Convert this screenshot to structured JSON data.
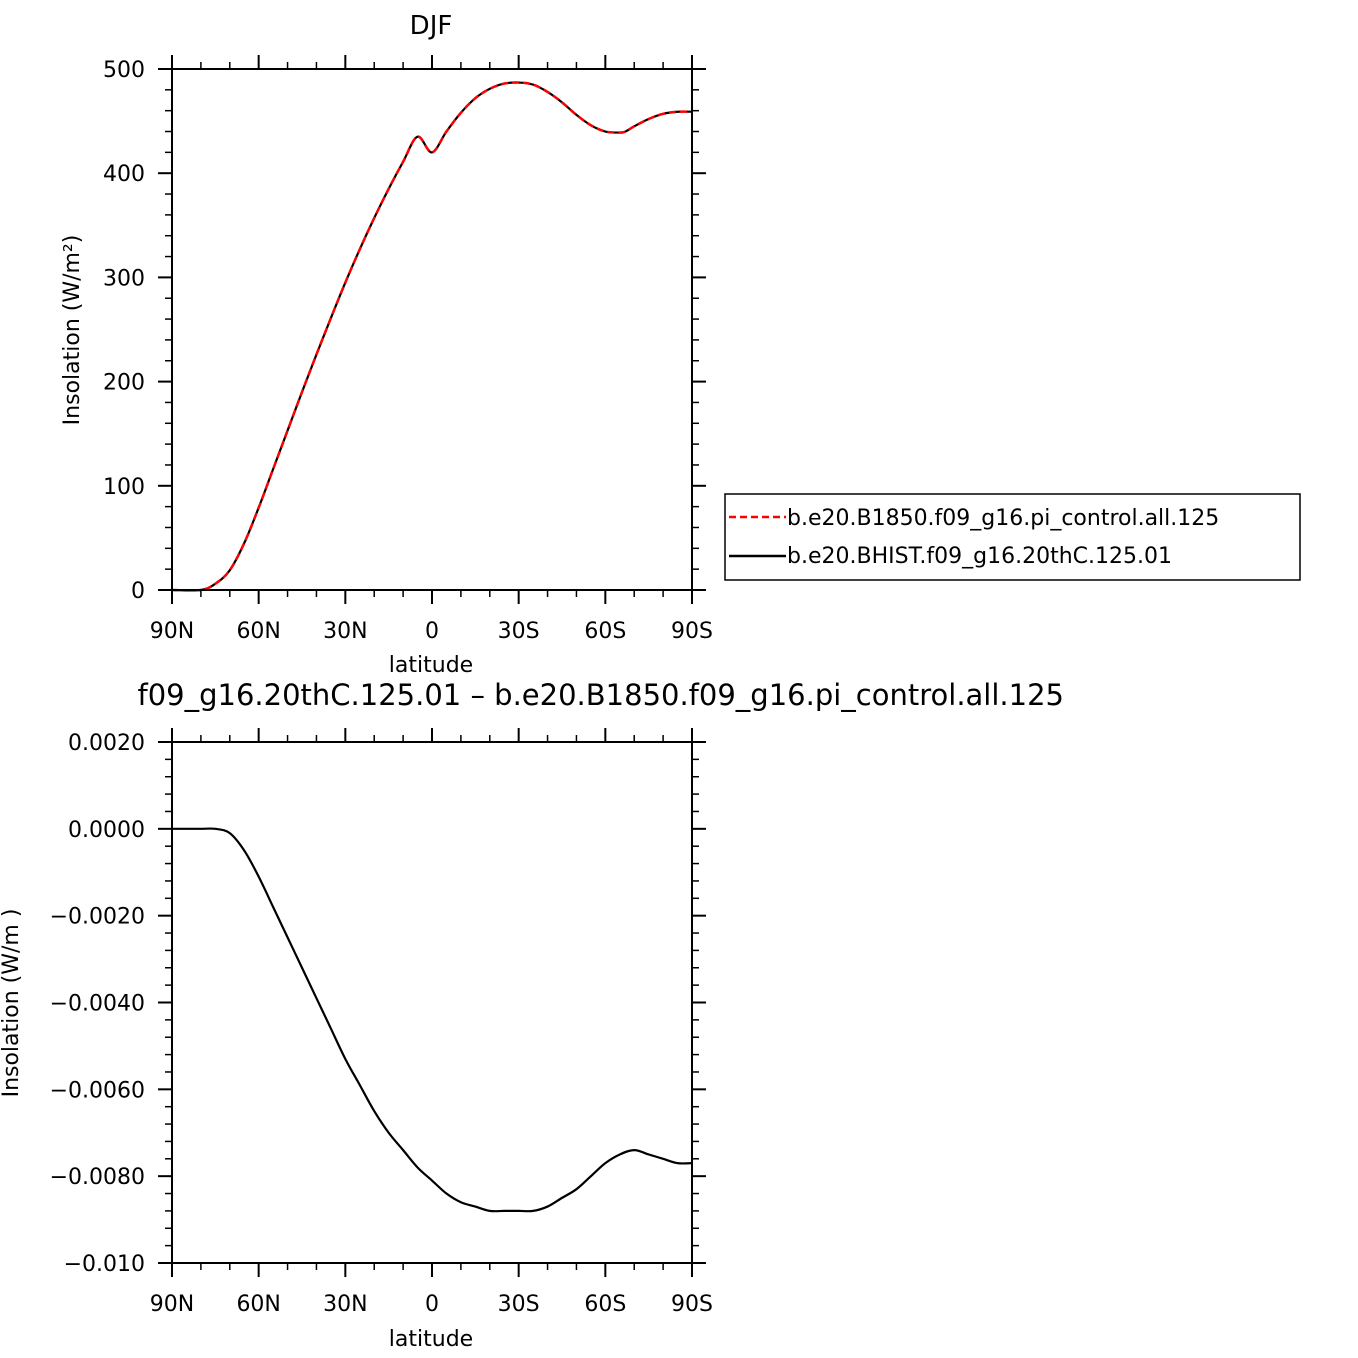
{
  "chart_data": [
    {
      "type": "line",
      "title": "DJF",
      "xlabel": "latitude",
      "ylabel": "Insolation  (W/m²)",
      "ylim": [
        0,
        500
      ],
      "yticks": [
        "0",
        "100",
        "200",
        "300",
        "400",
        "500"
      ],
      "ytick_values": [
        0,
        100,
        200,
        300,
        400,
        500
      ],
      "xlim": [
        90,
        -90
      ],
      "xticks": [
        "90N",
        "60N",
        "30N",
        "0",
        "30S",
        "60S",
        "90S"
      ],
      "xtick_values": [
        90,
        60,
        30,
        0,
        -30,
        -60,
        -90
      ],
      "grid": false,
      "legend": "right",
      "x": [
        90,
        80,
        75,
        70,
        65,
        60,
        55,
        50,
        45,
        40,
        35,
        30,
        25,
        20,
        15,
        10,
        5,
        0,
        -5,
        -10,
        -15,
        -20,
        -25,
        -30,
        -35,
        -40,
        -45,
        -50,
        -55,
        -60,
        -65,
        -67,
        -70,
        -75,
        -80,
        -85,
        -90
      ],
      "series": [
        {
          "name": "b.e20.B1850.f09_g16.pi_control.all.125",
          "color": "#ff0000",
          "dash": "dashed",
          "values": [
            0,
            0,
            6,
            19,
            45,
            79,
            116,
            153,
            190,
            226,
            261,
            295,
            327,
            357,
            385,
            411,
            435,
            420,
            440,
            458,
            472,
            481,
            486,
            487,
            485,
            478,
            468,
            456,
            446,
            440,
            439,
            440,
            445,
            452,
            457,
            459,
            459
          ]
        },
        {
          "name": "b.e20.BHIST.f09_g16.20thC.125.01",
          "color": "#000000",
          "dash": "solid",
          "values": [
            0,
            0,
            6,
            19,
            45,
            79,
            116,
            153,
            190,
            226,
            261,
            295,
            327,
            357,
            385,
            411,
            435,
            420,
            440,
            458,
            472,
            481,
            486,
            487,
            485,
            478,
            468,
            456,
            446,
            440,
            439,
            440,
            445,
            452,
            457,
            459,
            459
          ]
        }
      ]
    },
    {
      "type": "line",
      "title": "f09_g16.20thC.125.01  –  b.e20.B1850.f09_g16.pi_control.all.125",
      "xlabel": "latitude",
      "ylabel": "Insolation  (W/m )",
      "ylim": [
        -0.01,
        0.002
      ],
      "yticks": [
        "0.0020",
        "0.0000",
        "−0.0020",
        "−0.0040",
        "−0.0060",
        "−0.0080",
        "−0.010"
      ],
      "ytick_values": [
        0.002,
        0.0,
        -0.002,
        -0.004,
        -0.006,
        -0.008,
        -0.01
      ],
      "xlim": [
        90,
        -90
      ],
      "xticks": [
        "90N",
        "60N",
        "30N",
        "0",
        "30S",
        "60S",
        "90S"
      ],
      "xtick_values": [
        90,
        60,
        30,
        0,
        -30,
        -60,
        -90
      ],
      "grid": false,
      "x": [
        90,
        85,
        80,
        75,
        70,
        65,
        60,
        55,
        50,
        45,
        40,
        35,
        30,
        25,
        20,
        15,
        10,
        5,
        0,
        -5,
        -10,
        -15,
        -20,
        -25,
        -30,
        -35,
        -40,
        -45,
        -50,
        -55,
        -60,
        -65,
        -70,
        -75,
        -80,
        -85,
        -90
      ],
      "series": [
        {
          "name": "",
          "color": "#000000",
          "values": [
            0.0,
            0.0,
            0.0,
            0.0,
            -0.0001,
            -0.0005,
            -0.0011,
            -0.0018,
            -0.0025,
            -0.0032,
            -0.0039,
            -0.0046,
            -0.0053,
            -0.0059,
            -0.0065,
            -0.007,
            -0.0074,
            -0.0078,
            -0.0081,
            -0.0084,
            -0.0086,
            -0.0087,
            -0.0088,
            -0.0088,
            -0.0088,
            -0.0088,
            -0.0087,
            -0.0085,
            -0.0083,
            -0.008,
            -0.0077,
            -0.0075,
            -0.0074,
            -0.0075,
            -0.0076,
            -0.0077,
            -0.0077
          ]
        }
      ]
    }
  ]
}
